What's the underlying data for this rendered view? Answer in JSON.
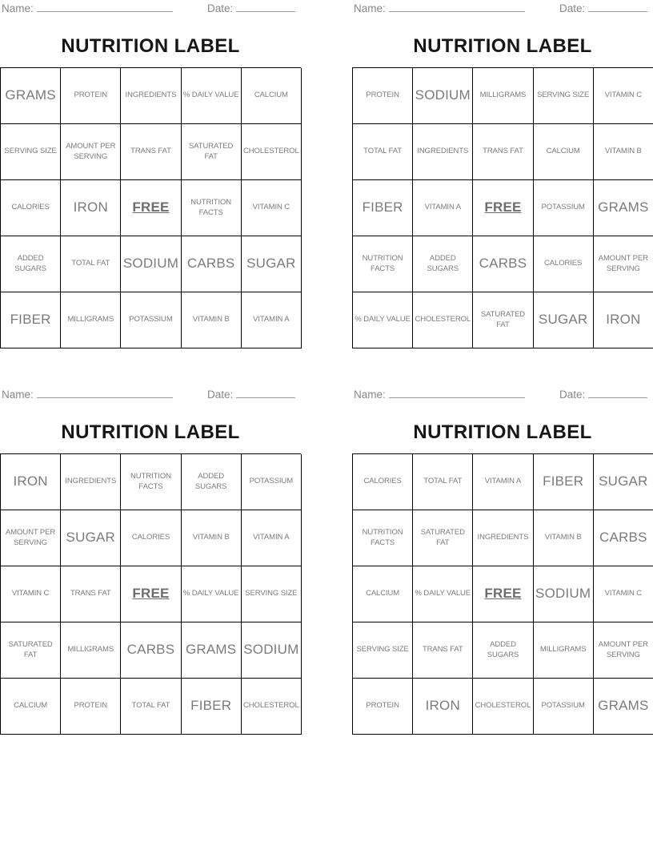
{
  "page": {
    "name_label": "Name:",
    "date_label": "Date:",
    "card_title": "NUTRITION LABEL"
  },
  "colors": {
    "cell_text": "#7b7b7b",
    "title_text": "#161616",
    "meta_text": "#878787",
    "grid_border": "#000000"
  },
  "cards": [
    {
      "position": "top-left",
      "cells": [
        {
          "text": "GRAMS",
          "size": "lg"
        },
        {
          "text": "PROTEIN",
          "size": "sm"
        },
        {
          "text": "INGREDIENTS",
          "size": "sm"
        },
        {
          "text": "% DAILY VALUE",
          "size": "sm"
        },
        {
          "text": "CALCIUM",
          "size": "sm"
        },
        {
          "text": "SERVING SIZE",
          "size": "sm"
        },
        {
          "text": "AMOUNT PER\nSERVING",
          "size": "sm"
        },
        {
          "text": "TRANS FAT",
          "size": "sm"
        },
        {
          "text": "SATURATED\nFAT",
          "size": "sm"
        },
        {
          "text": "CHOLESTEROL",
          "size": "sm"
        },
        {
          "text": "CALORIES",
          "size": "sm"
        },
        {
          "text": "IRON",
          "size": "lg"
        },
        {
          "text": "FREE",
          "size": "lg",
          "free": true
        },
        {
          "text": "NUTRITION\nFACTS",
          "size": "sm"
        },
        {
          "text": "VITAMIN C",
          "size": "sm"
        },
        {
          "text": "ADDED\nSUGARS",
          "size": "sm"
        },
        {
          "text": "TOTAL FAT",
          "size": "sm"
        },
        {
          "text": "SODIUM",
          "size": "lg"
        },
        {
          "text": "CARBS",
          "size": "lg"
        },
        {
          "text": "SUGAR",
          "size": "lg"
        },
        {
          "text": "FIBER",
          "size": "lg"
        },
        {
          "text": "MILLIGRAMS",
          "size": "sm"
        },
        {
          "text": "POTASSIUM",
          "size": "sm"
        },
        {
          "text": "VITAMIN B",
          "size": "sm"
        },
        {
          "text": "VITAMIN A",
          "size": "sm"
        }
      ]
    },
    {
      "position": "top-right",
      "cells": [
        {
          "text": "PROTEIN",
          "size": "sm"
        },
        {
          "text": "SODIUM",
          "size": "lg"
        },
        {
          "text": "MILLIGRAMS",
          "size": "sm"
        },
        {
          "text": "SERVING SIZE",
          "size": "sm"
        },
        {
          "text": "VITAMIN C",
          "size": "sm"
        },
        {
          "text": "TOTAL FAT",
          "size": "sm"
        },
        {
          "text": "INGREDIENTS",
          "size": "sm"
        },
        {
          "text": "TRANS FAT",
          "size": "sm"
        },
        {
          "text": "CALCIUM",
          "size": "sm"
        },
        {
          "text": "VITAMIN B",
          "size": "sm"
        },
        {
          "text": "FIBER",
          "size": "lg"
        },
        {
          "text": "VITAMIN A",
          "size": "sm"
        },
        {
          "text": "FREE",
          "size": "lg",
          "free": true
        },
        {
          "text": "POTASSIUM",
          "size": "sm"
        },
        {
          "text": "GRAMS",
          "size": "lg"
        },
        {
          "text": "NUTRITION\nFACTS",
          "size": "sm"
        },
        {
          "text": "ADDED\nSUGARS",
          "size": "sm"
        },
        {
          "text": "CARBS",
          "size": "lg"
        },
        {
          "text": "CALORIES",
          "size": "sm"
        },
        {
          "text": "AMOUNT PER\nSERVING",
          "size": "sm"
        },
        {
          "text": "% DAILY VALUE",
          "size": "sm"
        },
        {
          "text": "CHOLESTEROL",
          "size": "sm"
        },
        {
          "text": "SATURATED\nFAT",
          "size": "sm"
        },
        {
          "text": "SUGAR",
          "size": "lg"
        },
        {
          "text": "IRON",
          "size": "lg"
        }
      ]
    },
    {
      "position": "bottom-left",
      "cells": [
        {
          "text": "IRON",
          "size": "lg"
        },
        {
          "text": "INGREDIENTS",
          "size": "sm"
        },
        {
          "text": "NUTRITION\nFACTS",
          "size": "sm"
        },
        {
          "text": "ADDED\nSUGARS",
          "size": "sm"
        },
        {
          "text": "POTASSIUM",
          "size": "sm"
        },
        {
          "text": "AMOUNT PER\nSERVING",
          "size": "sm"
        },
        {
          "text": "SUGAR",
          "size": "lg"
        },
        {
          "text": "CALORIES",
          "size": "sm"
        },
        {
          "text": "VITAMIN B",
          "size": "sm"
        },
        {
          "text": "VITAMIN A",
          "size": "sm"
        },
        {
          "text": "VITAMIN C",
          "size": "sm"
        },
        {
          "text": "TRANS FAT",
          "size": "sm"
        },
        {
          "text": "FREE",
          "size": "lg",
          "free": true
        },
        {
          "text": "% DAILY VALUE",
          "size": "sm"
        },
        {
          "text": "SERVING SIZE",
          "size": "sm"
        },
        {
          "text": "SATURATED\nFAT",
          "size": "sm"
        },
        {
          "text": "MILLIGRAMS",
          "size": "sm"
        },
        {
          "text": "CARBS",
          "size": "lg"
        },
        {
          "text": "GRAMS",
          "size": "lg"
        },
        {
          "text": "SODIUM",
          "size": "lg"
        },
        {
          "text": "CALCIUM",
          "size": "sm"
        },
        {
          "text": "PROTEIN",
          "size": "sm"
        },
        {
          "text": "TOTAL FAT",
          "size": "sm"
        },
        {
          "text": "FIBER",
          "size": "lg"
        },
        {
          "text": "CHOLESTEROL",
          "size": "sm"
        }
      ]
    },
    {
      "position": "bottom-right",
      "cells": [
        {
          "text": "CALORIES",
          "size": "sm"
        },
        {
          "text": "TOTAL FAT",
          "size": "sm"
        },
        {
          "text": "VITAMIN A",
          "size": "sm"
        },
        {
          "text": "FIBER",
          "size": "lg"
        },
        {
          "text": "SUGAR",
          "size": "lg"
        },
        {
          "text": "NUTRITION\nFACTS",
          "size": "sm"
        },
        {
          "text": "SATURATED\nFAT",
          "size": "sm"
        },
        {
          "text": "INGREDIENTS",
          "size": "sm"
        },
        {
          "text": "VITAMIN B",
          "size": "sm"
        },
        {
          "text": "CARBS",
          "size": "lg"
        },
        {
          "text": "CALCIUM",
          "size": "sm"
        },
        {
          "text": "% DAILY VALUE",
          "size": "sm"
        },
        {
          "text": "FREE",
          "size": "lg",
          "free": true
        },
        {
          "text": "SODIUM",
          "size": "lg"
        },
        {
          "text": "VITAMIN C",
          "size": "sm"
        },
        {
          "text": "SERVING SIZE",
          "size": "sm"
        },
        {
          "text": "TRANS FAT",
          "size": "sm"
        },
        {
          "text": "ADDED\nSUGARS",
          "size": "sm"
        },
        {
          "text": "MILLIGRAMS",
          "size": "sm"
        },
        {
          "text": "AMOUNT PER\nSERVING",
          "size": "sm"
        },
        {
          "text": "PROTEIN",
          "size": "sm"
        },
        {
          "text": "IRON",
          "size": "lg"
        },
        {
          "text": "CHOLESTEROL",
          "size": "sm"
        },
        {
          "text": "POTASSIUM",
          "size": "sm"
        },
        {
          "text": "GRAMS",
          "size": "lg"
        }
      ]
    }
  ]
}
